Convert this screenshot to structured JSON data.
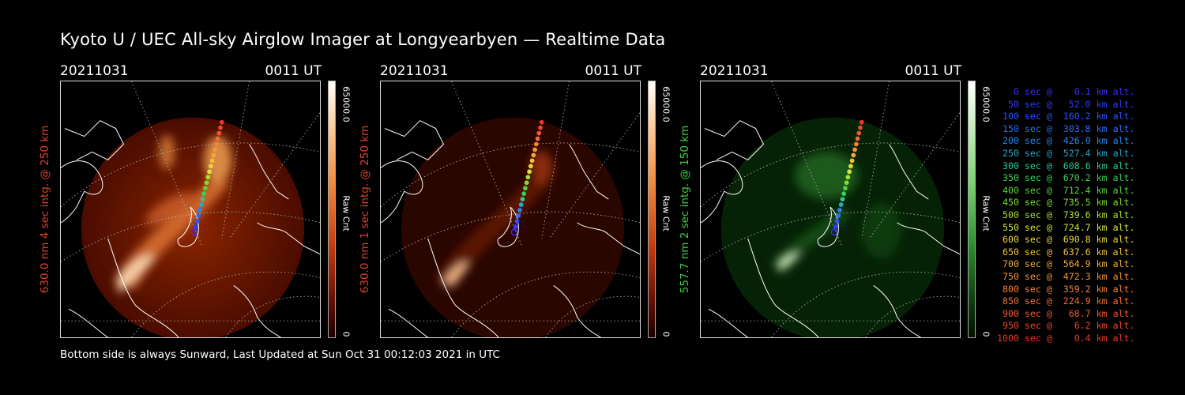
{
  "title": "Kyoto U / UEC All-sky Airglow Imager at Longyearbyen — Realtime Data",
  "footer": "Bottom side is always Sunward, Last Updated at Sun Oct 31 00:12:03 2021 in UTC",
  "panels": [
    {
      "date": "20211031",
      "time": "0011 UT",
      "ylabel": "630.0 nm 4 sec intg. @ 250 km",
      "label_color": "#e0402a",
      "cbar_max": "65000.0",
      "cbar_min": "0",
      "cbar_unit": "Raw Cnt",
      "colormap": "red"
    },
    {
      "date": "20211031",
      "time": "0011 UT",
      "ylabel": "630.0 nm 1 sec intg. @ 250 km",
      "label_color": "#e0402a",
      "cbar_max": "65000.0",
      "cbar_min": "0",
      "cbar_unit": "Raw Cnt",
      "colormap": "red"
    },
    {
      "date": "20211031",
      "time": "0011 UT",
      "ylabel": "557.7 nm 2 sec intg. @ 150 km",
      "label_color": "#3cd23c",
      "cbar_max": "65000.0",
      "cbar_min": "0",
      "cbar_unit": "Raw Cnt",
      "colormap": "green"
    }
  ],
  "legend": [
    {
      "text": "   0 sec @    0.1 km alt.",
      "color": "#3c2cff"
    },
    {
      "text": "  50 sec @   52.0 km alt.",
      "color": "#2e3cff"
    },
    {
      "text": " 100 sec @  160.2 km alt.",
      "color": "#2a55ff"
    },
    {
      "text": " 150 sec @  303.8 km alt.",
      "color": "#2a6cff"
    },
    {
      "text": " 200 sec @  426.0 km alt.",
      "color": "#2a86f2"
    },
    {
      "text": " 250 sec @  527.4 km alt.",
      "color": "#2aa6c8"
    },
    {
      "text": " 300 sec @  608.6 km alt.",
      "color": "#2ac896"
    },
    {
      "text": " 350 sec @  670.2 km alt.",
      "color": "#3ad05a"
    },
    {
      "text": " 400 sec @  712.4 km alt.",
      "color": "#5ad23a"
    },
    {
      "text": " 450 sec @  735.5 km alt.",
      "color": "#80dc30"
    },
    {
      "text": " 500 sec @  739.6 km alt.",
      "color": "#a8e230"
    },
    {
      "text": " 550 sec @  724.7 km alt.",
      "color": "#d2e636"
    },
    {
      "text": " 600 sec @  690.8 km alt.",
      "color": "#ecd63a"
    },
    {
      "text": " 650 sec @  637.6 km alt.",
      "color": "#f0c03a"
    },
    {
      "text": " 700 sec @  564.9 km alt.",
      "color": "#f2aa38"
    },
    {
      "text": " 750 sec @  472.3 km alt.",
      "color": "#f29636"
    },
    {
      "text": " 800 sec @  359.2 km alt.",
      "color": "#f28234"
    },
    {
      "text": " 850 sec @  224.9 km alt.",
      "color": "#f06e32"
    },
    {
      "text": " 900 sec @   68.7 km alt.",
      "color": "#ee5a30"
    },
    {
      "text": " 950 sec @    6.2 km alt.",
      "color": "#ec482e"
    },
    {
      "text": "1000 sec @    0.4 km alt.",
      "color": "#e8382c"
    }
  ]
}
